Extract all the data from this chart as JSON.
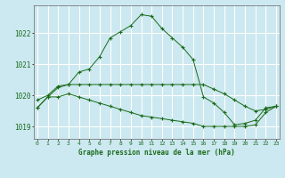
{
  "title": "Graphe pression niveau de la mer (hPa)",
  "bg_color": "#cce8f0",
  "grid_color": "#ffffff",
  "line_color": "#1a6b1a",
  "x_ticks": [
    0,
    1,
    2,
    3,
    4,
    5,
    6,
    7,
    8,
    9,
    10,
    11,
    12,
    13,
    14,
    15,
    16,
    17,
    18,
    19,
    20,
    21,
    22,
    23
  ],
  "y_ticks": [
    1019,
    1020,
    1021,
    1022
  ],
  "ylim": [
    1018.6,
    1022.9
  ],
  "xlim": [
    -0.3,
    23.3
  ],
  "series_main": [
    1019.6,
    1019.95,
    1020.25,
    1020.35,
    1020.75,
    1020.85,
    1021.25,
    1021.85,
    1022.05,
    1022.25,
    1022.6,
    1022.55,
    1022.15,
    1021.85,
    1021.55,
    1021.15,
    1019.95,
    1019.75,
    1019.45,
    1019.05,
    1019.1,
    1019.2,
    1019.6,
    1019.65
  ],
  "series_upper": [
    1019.85,
    1020.0,
    1020.3,
    1020.35,
    1020.35,
    1020.35,
    1020.35,
    1020.35,
    1020.35,
    1020.35,
    1020.35,
    1020.35,
    1020.35,
    1020.35,
    1020.35,
    1020.35,
    1020.35,
    1020.2,
    1020.05,
    1019.85,
    1019.65,
    1019.5,
    1019.55,
    1019.65
  ],
  "series_lower": [
    1019.6,
    1019.95,
    1019.95,
    1020.05,
    1019.95,
    1019.85,
    1019.75,
    1019.65,
    1019.55,
    1019.45,
    1019.35,
    1019.3,
    1019.25,
    1019.2,
    1019.15,
    1019.1,
    1019.0,
    1019.0,
    1019.0,
    1019.0,
    1019.0,
    1019.05,
    1019.45,
    1019.65
  ]
}
